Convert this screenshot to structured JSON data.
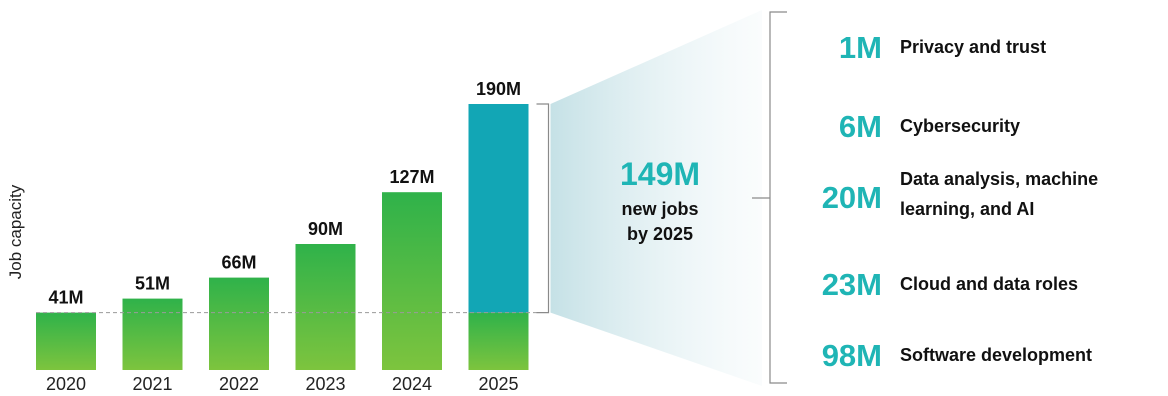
{
  "chart_data": {
    "type": "bar",
    "ylabel": "Job capacity",
    "categories": [
      "2020",
      "2021",
      "2022",
      "2023",
      "2024",
      "2025"
    ],
    "values": [
      41,
      51,
      66,
      90,
      127,
      190
    ],
    "value_labels": [
      "41M",
      "51M",
      "66M",
      "90M",
      "127M",
      "190M"
    ],
    "baseline_value": 41,
    "highlight": {
      "category": "2025",
      "color": "#12a6b5"
    },
    "bar_gradient": {
      "top": "#2fb24a",
      "bottom": "#7dc43e"
    },
    "total": {
      "value": "149M",
      "line1": "new jobs",
      "line2": "by 2025"
    },
    "breakdown": [
      {
        "value": "1M",
        "label_lines": [
          "Privacy and trust"
        ]
      },
      {
        "value": "6M",
        "label_lines": [
          "Cybersecurity"
        ]
      },
      {
        "value": "20M",
        "label_lines": [
          "Data analysis, machine",
          "learning, and AI"
        ]
      },
      {
        "value": "23M",
        "label_lines": [
          "Cloud and data roles"
        ]
      },
      {
        "value": "98M",
        "label_lines": [
          "Software development"
        ]
      }
    ],
    "accent_color": "#1fb5b5",
    "grid": false
  }
}
